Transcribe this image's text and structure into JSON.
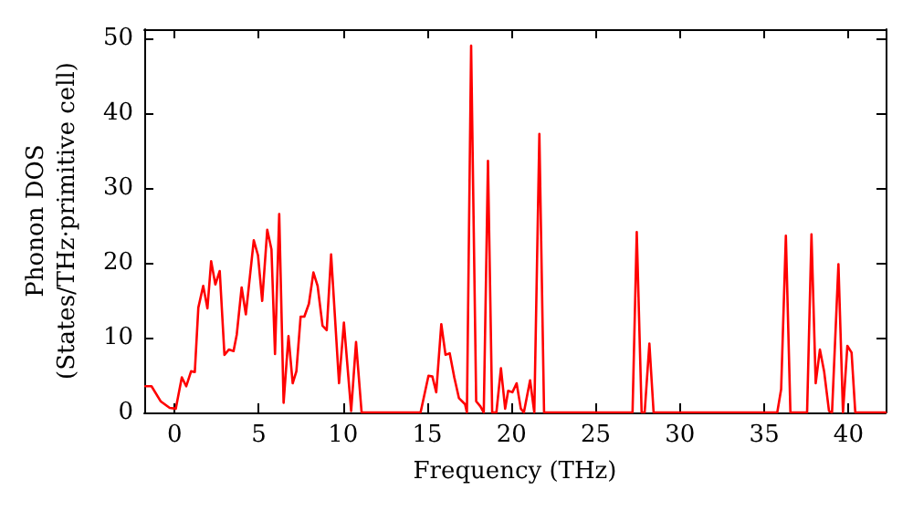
{
  "chart_data": {
    "type": "line",
    "xlabel": "Frequency (THz)",
    "ylabel": "Phonon DOS\n(States/THz·primitive cell)",
    "xlim": [
      -1.8,
      42.2
    ],
    "xticks": [
      0,
      5,
      10,
      15,
      20,
      25,
      30,
      35,
      40
    ],
    "ylim": [
      0,
      51.2
    ],
    "yticks": [
      0,
      10,
      20,
      30,
      40,
      50
    ],
    "marker": "none",
    "line_style": "solid",
    "series": [
      {
        "color": "#ff0000",
        "x": [
          -1.73,
          -1.37,
          -0.83,
          -0.29,
          0.07,
          0.43,
          0.69,
          0.98,
          1.2,
          1.41,
          1.7,
          1.95,
          2.17,
          2.42,
          2.68,
          2.96,
          3.22,
          3.5,
          3.69,
          3.98,
          4.23,
          4.7,
          4.95,
          5.2,
          5.5,
          5.75,
          5.96,
          6.21,
          6.47,
          6.76,
          7.01,
          7.23,
          7.48,
          7.7,
          7.97,
          8.24,
          8.49,
          8.78,
          9.03,
          9.29,
          9.76,
          10.05,
          10.48,
          10.77,
          11.1,
          14.6,
          15.07,
          15.3,
          15.53,
          15.83,
          16.08,
          16.33,
          16.6,
          16.88,
          17.24,
          17.35,
          17.6,
          17.9,
          18.15,
          18.35,
          18.6,
          18.85,
          19.1,
          19.37,
          19.62,
          19.8,
          20.05,
          20.3,
          20.55,
          20.73,
          21.1,
          21.35,
          21.65,
          21.93,
          27.18,
          27.43,
          27.72,
          27.9,
          28.18,
          28.43,
          35.77,
          36.0,
          36.28,
          36.55,
          37.54,
          37.8,
          38.05,
          38.3,
          38.55,
          38.84,
          39.02,
          39.4,
          39.67,
          39.93,
          40.18,
          40.4,
          42.2
        ],
        "values": [
          3.5,
          3.5,
          1.5,
          0.6,
          0.5,
          4.7,
          3.5,
          5.5,
          5.4,
          14,
          16.9,
          13.9,
          20.2,
          17.1,
          18.9,
          7.7,
          8.4,
          8.2,
          10.4,
          16.7,
          13.1,
          23,
          21,
          14.9,
          24.4,
          21.8,
          7.8,
          26.5,
          1.3,
          10.2,
          3.9,
          5.5,
          12.8,
          12.8,
          14.5,
          18.7,
          16.9,
          11.6,
          11,
          21.1,
          3.9,
          12,
          0.2,
          9.4,
          0,
          0,
          4.9,
          4.8,
          2.7,
          11.8,
          7.7,
          7.9,
          4.7,
          1.9,
          1.1,
          0,
          49,
          1.5,
          0.8,
          0,
          33.6,
          0,
          0,
          5.9,
          0.5,
          2.9,
          2.7,
          3.9,
          0.5,
          0,
          4.3,
          0,
          37.2,
          0,
          0,
          24.1,
          0,
          0,
          9.2,
          0,
          0,
          3.1,
          23.6,
          0,
          0,
          23.8,
          3.9,
          8.4,
          5.5,
          0.2,
          0,
          19.8,
          0,
          8.9,
          8,
          0,
          0
        ]
      }
    ]
  }
}
